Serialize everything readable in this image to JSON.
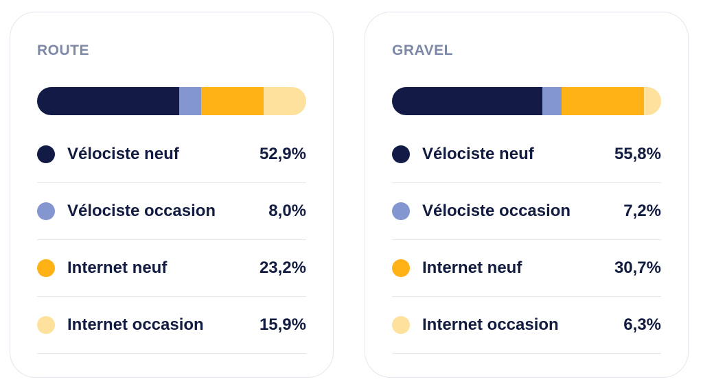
{
  "chart_data": [
    {
      "type": "bar",
      "title": "ROUTE",
      "stacked": true,
      "categories": [
        "Vélociste neuf",
        "Vélociste occasion",
        "Internet neuf",
        "Internet occasion"
      ],
      "values": [
        52.9,
        8.0,
        23.2,
        15.9
      ],
      "value_labels": [
        "52,9%",
        "8,0%",
        "23,2%",
        "15,9%"
      ],
      "colors": [
        "#121b45",
        "#8496cf",
        "#ffb215",
        "#fde19c"
      ]
    },
    {
      "type": "bar",
      "title": "GRAVEL",
      "stacked": true,
      "categories": [
        "Vélociste neuf",
        "Vélociste occasion",
        "Internet neuf",
        "Internet occasion"
      ],
      "values": [
        55.8,
        7.2,
        30.7,
        6.3
      ],
      "value_labels": [
        "55,8%",
        "7,2%",
        "30,7%",
        "6,3%"
      ],
      "colors": [
        "#121b45",
        "#8496cf",
        "#ffb215",
        "#fde19c"
      ]
    }
  ]
}
